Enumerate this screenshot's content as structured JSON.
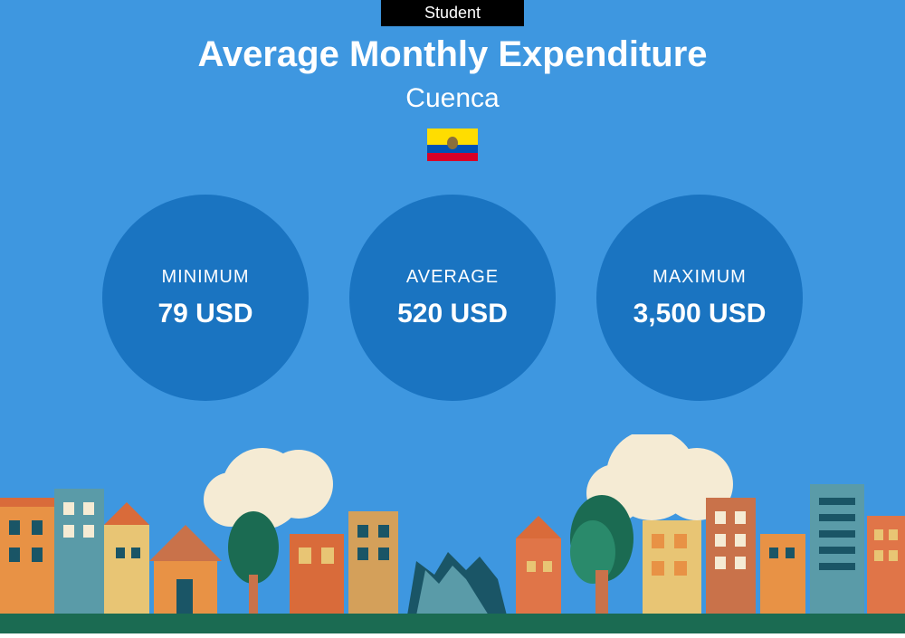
{
  "badge": {
    "label": "Student",
    "background": "#000000",
    "color": "#ffffff"
  },
  "title": "Average Monthly Expenditure",
  "subtitle": "Cuenca",
  "background_color": "#3e97e0",
  "flag": {
    "stripes": [
      "#ffdd00",
      "#ffdd00",
      "#0052b4",
      "#d80027"
    ],
    "emblem_color": "#8b6f3b"
  },
  "stats": [
    {
      "label": "MINIMUM",
      "value": "79 USD"
    },
    {
      "label": "AVERAGE",
      "value": "520 USD"
    },
    {
      "label": "MAXIMUM",
      "value": "3,500 USD"
    }
  ],
  "circle_color": "#1a74c1",
  "cityscape": {
    "ground_color": "#1b6b52",
    "cloud_color": "#f5ebd4",
    "tree_colors": [
      "#1b6b52",
      "#2a8a6b"
    ],
    "building_colors": [
      "#e89245",
      "#d96b3a",
      "#5a9ba8",
      "#e8c574",
      "#c9724a",
      "#1a5566",
      "#d4a05a",
      "#e07548"
    ]
  }
}
